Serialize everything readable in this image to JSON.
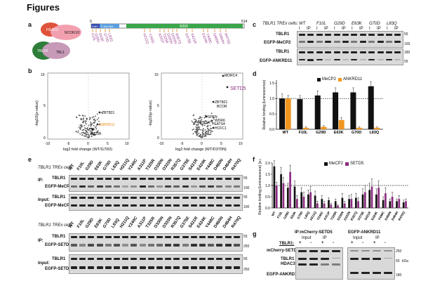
{
  "page_title": "Figures",
  "panels": {
    "a": "a",
    "b": "b",
    "c": "c",
    "d": "d",
    "e": "e",
    "f": "f",
    "g": "g"
  },
  "panel_a": {
    "complex_labels": [
      "HDAC3",
      "NCOR1/2",
      "TBL1R",
      "TBL1"
    ],
    "domains": [
      "LisH",
      "F-box-like",
      "WDR"
    ],
    "start_label": "0",
    "end_label": "514",
    "mutations": [
      "F10L",
      "G29D",
      "E63K",
      "G70D",
      "L83Q",
      "H211Q",
      "Y240C",
      "A311P",
      "T325R",
      "D330N",
      "D333N",
      "R357Q",
      "G375E",
      "S421R",
      "E424K",
      "Y448C",
      "D460N",
      "D464H",
      "R470Q"
    ],
    "colors": {
      "lish": "#3a4db0",
      "fbox": "#5aa0e0",
      "wdr": "#3aa64a",
      "hdac3": "#e0533b",
      "ncor": "#f2a0b0",
      "tbl1r": "#2f7d3a",
      "tbl1": "#c79ab8",
      "mut_text": "#9b3d8f",
      "tick": "#d98a2a"
    }
  },
  "panel_b": {
    "left": {
      "xlabel": "log2 fold change (WT/G70D)",
      "ylabel": "-log10(p-value)",
      "labels": [
        "ZBTB21",
        "ANKRD11",
        "ZNF7",
        "BCOR"
      ],
      "xticks": [
        "-10",
        "-5",
        "0",
        "5",
        "10"
      ],
      "yticks": [
        "0",
        "5",
        "10"
      ]
    },
    "right": {
      "xlabel": "log2 fold change (WT/D370N)",
      "ylabel": "-log10(p-value)",
      "labels": [
        "MORC4",
        "SETD5",
        "ZBTB21",
        "BCOR",
        "SPEN",
        "WDR6",
        "RPS3A",
        "YEATS4",
        "HCFC1"
      ],
      "xticks": [
        "-10",
        "-5",
        "0",
        "5",
        "10"
      ],
      "yticks": [
        "0",
        "5",
        "10"
      ]
    }
  },
  "panel_c": {
    "cell_line": "TBLR1 TREx cells:",
    "columns": [
      "WT",
      "F10L",
      "G29D",
      "E63K",
      "G70D",
      "L83Q"
    ],
    "ip_labels": [
      "I",
      "IP"
    ],
    "rows": [
      "TBLR1",
      "EGFP-MeCP2",
      "TBLR1",
      "EGFP-ANKRD11"
    ],
    "mw_top": [
      "55",
      "100"
    ],
    "mw_bottom": [
      "180",
      "55"
    ]
  },
  "panel_d": {
    "legend": [
      "MeCP2",
      "ANKRD11"
    ],
    "ylabel": "Relative binding (luminescence)",
    "yticks": [
      "0.0",
      "0.5",
      "1.0",
      "1.5"
    ]
  },
  "panel_e": {
    "cell_line": "TBLR1 TREx cells:",
    "columns": [
      "WT",
      "F10L",
      "G29D",
      "E63K",
      "G70D",
      "L83Q",
      "H211Q",
      "Y240C",
      "A311P",
      "T325R",
      "D330N",
      "D333N",
      "R357Q",
      "G375E",
      "S421R",
      "E424K",
      "Y448C",
      "D460N",
      "D464H",
      "R470Q"
    ],
    "section1": [
      "IP:",
      "TBLR1",
      "EGFP-MeCP2",
      "Input:",
      "TBLR1",
      "EGFP-MeCP2"
    ],
    "section2": [
      "IP:",
      "TBLR1",
      "EGFP-SETD5",
      "Input:",
      "TBLR1",
      "EGFP-SETD5"
    ],
    "mw": [
      "55",
      "100",
      "250"
    ]
  },
  "panel_g": {
    "headers": [
      "IP:mCherry-SETD5",
      "EGFP-ANKRD11"
    ],
    "sub": [
      "Input",
      "IP",
      "Input",
      "IP"
    ],
    "tblr1": "TBLR1:",
    "signs": [
      "+",
      "-",
      "+",
      "-",
      "+",
      "-",
      "+",
      "-"
    ],
    "rows": [
      "mCherry-SETD5",
      "TBLR1",
      "HDAC3",
      "EGFP-ANKRD11"
    ],
    "mw": [
      "250",
      "55",
      "kDa",
      "180"
    ]
  },
  "chart_data": [
    {
      "type": "bar",
      "id": "panel-d",
      "categories": [
        "WT",
        "F10L",
        "G29D",
        "E63K",
        "G70D",
        "L83Q"
      ],
      "series": [
        {
          "name": "MeCP2",
          "values": [
            1.0,
            0.98,
            1.1,
            1.2,
            1.2,
            1.4
          ],
          "errors": [
            0.15,
            0.12,
            0.15,
            0.15,
            0.15,
            0.15
          ],
          "color": "#111111"
        },
        {
          "name": "ANKRD11",
          "values": [
            1.0,
            0.05,
            0.08,
            0.3,
            0.05,
            0.05
          ],
          "errors": [
            0.1,
            0.03,
            0.04,
            0.08,
            0.03,
            0.03
          ],
          "color": "#f0961e"
        }
      ],
      "ylabel": "Relative binding (luminescence)",
      "ylim": [
        0,
        1.6
      ],
      "yticks": [
        0.0,
        0.5,
        1.0,
        1.5
      ],
      "reference_line": 1.0,
      "legend": "top-right"
    },
    {
      "type": "bar",
      "id": "panel-f",
      "categories": [
        "WT",
        "F10L",
        "G29D",
        "E63K",
        "G70D",
        "L83Q",
        "H211Q",
        "Y240C",
        "A311P",
        "T325R",
        "D330N",
        "D333N",
        "R357Q",
        "G375E",
        "S421R",
        "E424K",
        "Y448C",
        "D460N",
        "D464H",
        "R470Q"
      ],
      "series": [
        {
          "name": "MeCP2",
          "values": [
            1.85,
            1.5,
            0.9,
            0.95,
            0.7,
            0.6,
            0.55,
            0.4,
            0.35,
            0.3,
            0.45,
            0.4,
            0.45,
            0.6,
            0.8,
            0.6,
            0.35,
            0.3,
            0.3,
            0.25
          ],
          "errors": [
            0.25,
            0.3,
            0.2,
            0.25,
            0.2,
            0.2,
            0.2,
            0.15,
            0.1,
            0.1,
            0.2,
            0.15,
            0.2,
            0.25,
            0.3,
            0.25,
            0.15,
            0.1,
            0.1,
            0.1
          ],
          "color": "#111111"
        },
        {
          "name": "SETD5",
          "values": [
            1.0,
            1.1,
            1.6,
            0.4,
            0.5,
            0.7,
            0.2,
            0.2,
            0.15,
            0.1,
            0.2,
            0.4,
            0.3,
            0.7,
            0.95,
            0.9,
            0.65,
            0.5,
            0.4,
            0.3
          ],
          "errors": [
            0.15,
            0.25,
            0.3,
            0.15,
            0.2,
            0.25,
            0.1,
            0.1,
            0.05,
            0.05,
            0.1,
            0.2,
            0.15,
            0.3,
            0.35,
            0.3,
            0.25,
            0.2,
            0.15,
            0.1
          ],
          "color": "#8b2c80"
        }
      ],
      "ylabel": "Relative binding (luminescence) [a.u.]",
      "ylim": [
        0,
        2.0
      ],
      "yticks": [
        0.0,
        0.5,
        1.0,
        1.5,
        2.0
      ],
      "reference_line": 1.0,
      "legend": "top-right"
    }
  ]
}
